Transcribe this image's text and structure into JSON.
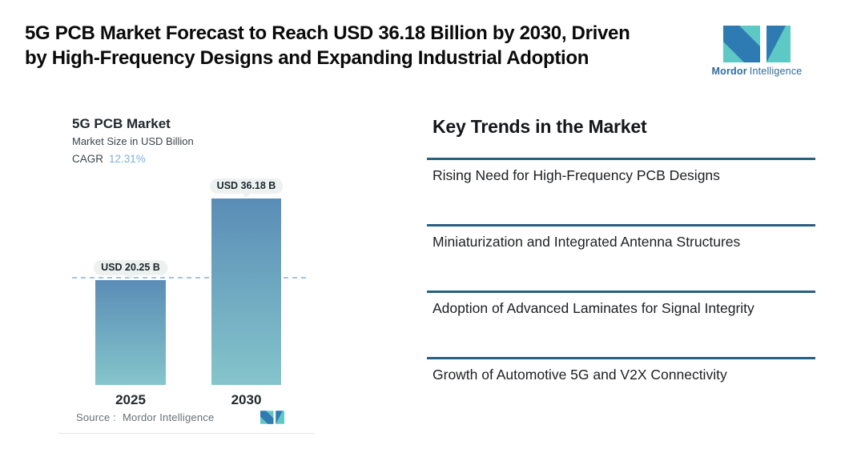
{
  "header": {
    "title_line1": "5G PCB Market Forecast to Reach USD 36.18 Billion by 2030, Driven",
    "title_line2": "by High-Frequency Designs and Expanding Industrial Adoption"
  },
  "brand": {
    "name_bold": "Mordor",
    "name_light": "Intelligence"
  },
  "chart": {
    "title": "5G PCB Market",
    "subtitle": "Market Size in USD Billion",
    "cagr_label": "CAGR",
    "cagr_value": "12.31%",
    "source_prefix": "Source :",
    "source_name": "Mordor Intelligence"
  },
  "chart_data": {
    "type": "bar",
    "title": "5G PCB Market",
    "subtitle": "Market Size in USD Billion",
    "unit": "USD Billion",
    "cagr_percent": 12.31,
    "categories": [
      "2025",
      "2030"
    ],
    "values": [
      20.25,
      36.18
    ],
    "value_labels": [
      "USD 20.25 B",
      "USD 36.18 B"
    ],
    "ylim": [
      0,
      40
    ],
    "grid": false,
    "reference_line_at": 20.25,
    "bar_gradient_top": "#5a8db6",
    "bar_gradient_bottom": "#85c5cc",
    "dashed_line_color": "#a3c4e3",
    "value_pill_bg": "#edf2f1"
  },
  "trends": {
    "heading": "Key Trends in the Market",
    "items": [
      "Rising Need for High-Frequency PCB Designs",
      "Miniaturization and Integrated Antenna Structures",
      "Adoption of Advanced Laminates for Signal Integrity",
      "Growth of Automotive 5G and V2X Connectivity"
    ]
  },
  "colors": {
    "trend_rule": "#266082",
    "cagr_value": "#7db1da",
    "logo_teal": "#5ec8c5",
    "logo_blue": "#2e7ab3",
    "wordmark_text": "#2f6b99"
  }
}
